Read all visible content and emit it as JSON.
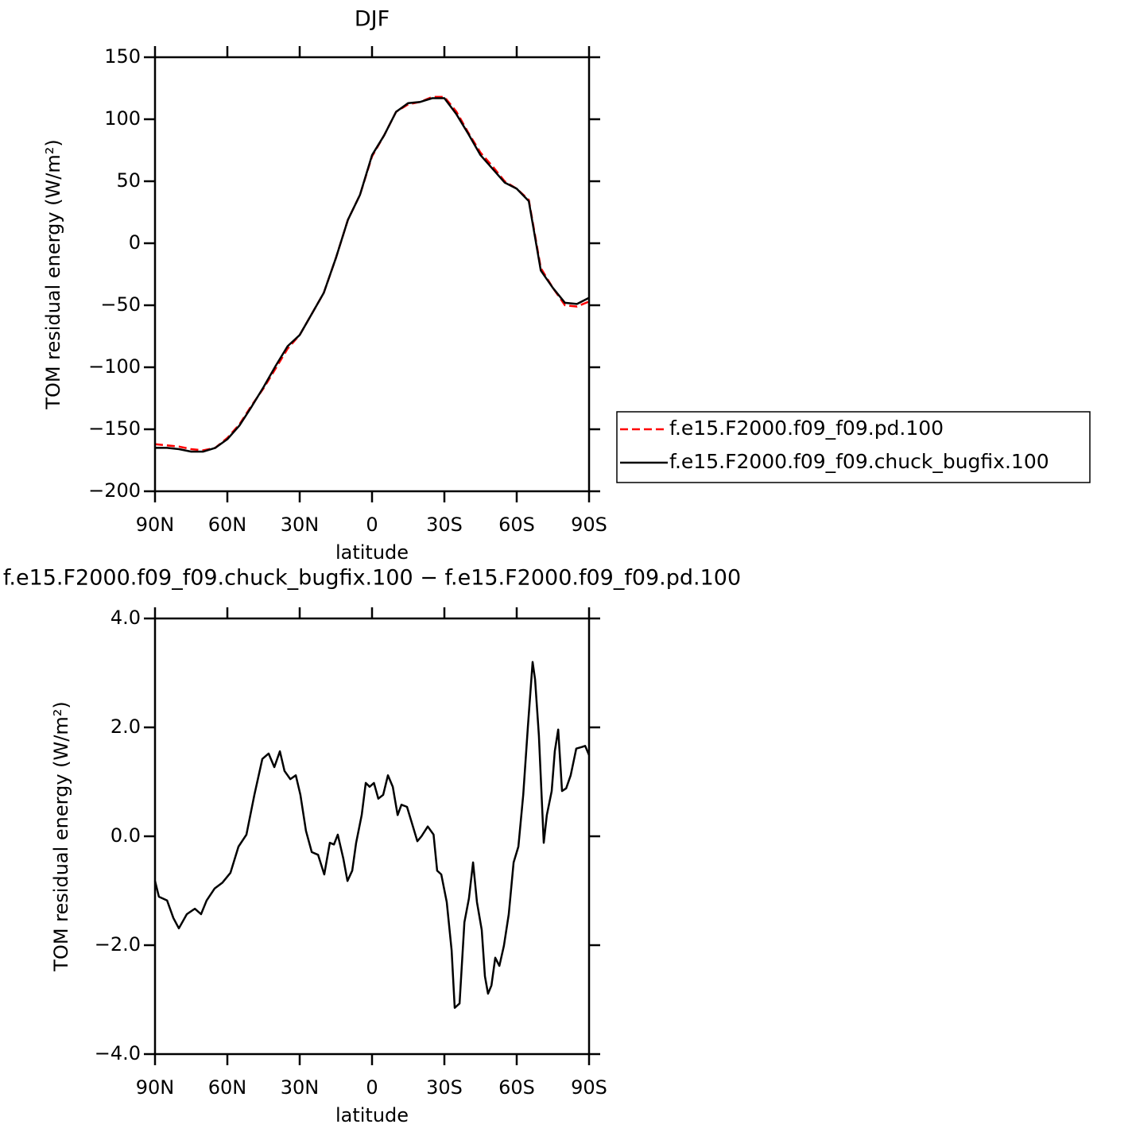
{
  "chart_data": [
    {
      "type": "line",
      "title": "DJF",
      "x_label": "latitude",
      "y_label": "TOM residual energy (W/m²)",
      "x": [
        90,
        85,
        80,
        75,
        70,
        65,
        60,
        55,
        50,
        45,
        40,
        35,
        30,
        25,
        20,
        15,
        10,
        5,
        0,
        -5,
        -10,
        -15,
        -20,
        -25,
        -30,
        -35,
        -40,
        -45,
        -50,
        -55,
        -60,
        -65,
        -70,
        -75,
        -80,
        -85,
        -90
      ],
      "series": [
        {
          "name": "f.e15.F2000.f09_f09.pd.100",
          "color": "#ff0000",
          "line_style": "dashed",
          "values": [
            -162,
            -163,
            -164,
            -166,
            -167,
            -165,
            -157,
            -146,
            -131,
            -117,
            -101,
            -85,
            -74,
            -57,
            -40,
            -12,
            19,
            39,
            70,
            87,
            106,
            112,
            114,
            118,
            118,
            106,
            89,
            73,
            62,
            50,
            44,
            35,
            -20,
            -36,
            -50,
            -51,
            -47
          ]
        },
        {
          "name": "f.e15.F2000.f09_f09.chuck_bugfix.100",
          "color": "#000000",
          "line_style": "solid",
          "values": [
            -165,
            -165,
            -166,
            -168,
            -168,
            -165,
            -158,
            -147,
            -132,
            -116,
            -99,
            -83,
            -74,
            -57,
            -40,
            -12,
            19,
            39,
            71,
            87,
            106,
            113,
            114,
            117,
            117,
            104,
            88,
            71,
            60,
            49,
            44,
            34,
            -22,
            -36,
            -48,
            -49,
            -44
          ]
        }
      ],
      "xlim": [
        90,
        -90
      ],
      "xticks": [
        {
          "value": 90,
          "label": "90N"
        },
        {
          "value": 60,
          "label": "60N"
        },
        {
          "value": 30,
          "label": "30N"
        },
        0,
        {
          "value": -30,
          "label": "30S"
        },
        {
          "value": -60,
          "label": "60S"
        },
        {
          "value": -90,
          "label": "90S"
        }
      ],
      "ylim": [
        -200,
        150
      ],
      "yticks": [
        {
          "value": -200,
          "label": "−200"
        },
        {
          "value": -150,
          "label": "−150"
        },
        {
          "value": -100,
          "label": "−100"
        },
        {
          "value": -50,
          "label": "−50"
        },
        0,
        50,
        100,
        150
      ],
      "legend": "right"
    },
    {
      "type": "line",
      "title": "f.e15.F2000.f09_f09.chuck_bugfix.100 − f.e15.F2000.f09_f09.pd.100",
      "x_label": "latitude",
      "y_label": "TOM residual energy (W/m²)",
      "x": [
        90,
        88.4,
        85,
        82.4,
        80.1,
        76.8,
        73.5,
        70.9,
        68.6,
        65.3,
        62,
        58.7,
        55.4,
        52.1,
        48.8,
        45.5,
        42.9,
        40.5,
        38.2,
        36.3,
        33.9,
        31.6,
        29.7,
        27.4,
        25,
        22.4,
        19.8,
        17.5,
        15.8,
        14.2,
        11.9,
        10.2,
        8.2,
        6.6,
        4.3,
        2.6,
        1,
        -0.8,
        -2.6,
        -4.6,
        -6.6,
        -8.6,
        -10.6,
        -12.2,
        -14.5,
        -16.5,
        -18.8,
        -20.5,
        -23.1,
        -25.5,
        -27,
        -28.7,
        -31,
        -33,
        -34.3,
        -36.3,
        -38.3,
        -40.2,
        -41.9,
        -43.5,
        -45.5,
        -46.8,
        -48.1,
        -49.5,
        -51.1,
        -52.8,
        -54.7,
        -56.7,
        -58.7,
        -60.7,
        -62.7,
        -64.6,
        -66.6,
        -67.6,
        -69.2,
        -71.2,
        -72.5,
        -74.5,
        -75.8,
        -77.2,
        -78.8,
        -80.5,
        -82.4,
        -84.7,
        -87,
        -88.4,
        -90
      ],
      "values": [
        -0.82,
        -1.11,
        -1.18,
        -1.5,
        -1.69,
        -1.43,
        -1.33,
        -1.43,
        -1.18,
        -0.96,
        -0.85,
        -0.67,
        -0.19,
        0.03,
        0.76,
        1.42,
        1.52,
        1.27,
        1.56,
        1.2,
        1.05,
        1.12,
        0.76,
        0.1,
        -0.29,
        -0.34,
        -0.7,
        -0.12,
        -0.15,
        0.03,
        -0.41,
        -0.82,
        -0.63,
        -0.12,
        0.39,
        0.98,
        0.91,
        0.98,
        0.69,
        0.76,
        1.12,
        0.91,
        0.39,
        0.58,
        0.54,
        0.25,
        -0.09,
        0,
        0.18,
        0.03,
        -0.63,
        -0.7,
        -1.21,
        -2.09,
        -3.15,
        -3.07,
        -1.58,
        -1.14,
        -0.48,
        -1.21,
        -1.72,
        -2.57,
        -2.89,
        -2.74,
        -2.23,
        -2.38,
        -2.01,
        -1.43,
        -0.48,
        -0.19,
        0.76,
        2.0,
        3.2,
        2.88,
        1.85,
        -0.12,
        0.39,
        0.83,
        1.56,
        1.96,
        0.83,
        0.88,
        1.12,
        1.61,
        1.64,
        1.66,
        1.49
      ],
      "color": "#000000",
      "line_style": "solid",
      "xlim": [
        90,
        -90
      ],
      "xticks": [
        {
          "value": 90,
          "label": "90N"
        },
        {
          "value": 60,
          "label": "60N"
        },
        {
          "value": 30,
          "label": "30N"
        },
        0,
        {
          "value": -30,
          "label": "30S"
        },
        {
          "value": -60,
          "label": "60S"
        },
        {
          "value": -90,
          "label": "90S"
        }
      ],
      "ylim": [
        -4,
        4
      ],
      "yticks": [
        {
          "value": -4,
          "label": "−4.0"
        },
        {
          "value": -2,
          "label": "−2.0"
        },
        {
          "value": 0,
          "label": "0.0"
        },
        {
          "value": 2,
          "label": "2.0"
        },
        {
          "value": 4,
          "label": "4.0"
        }
      ]
    }
  ]
}
